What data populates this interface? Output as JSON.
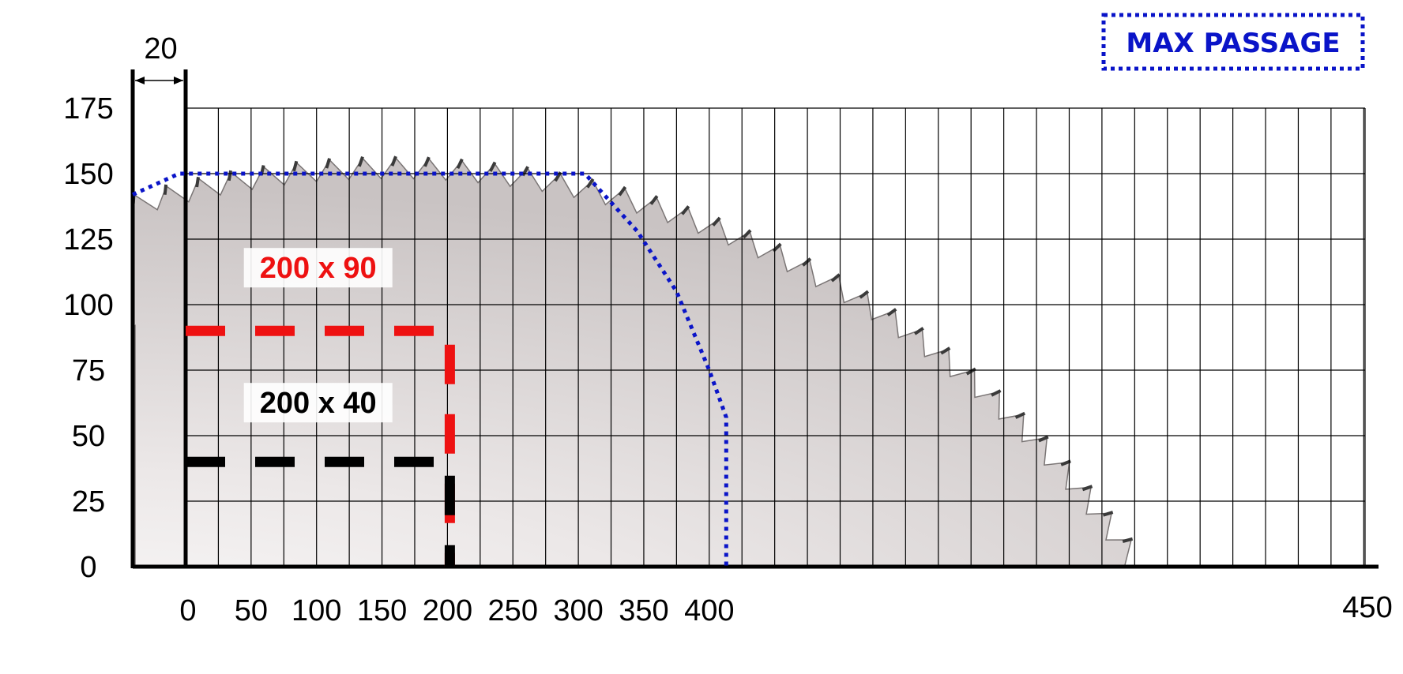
{
  "chart_data": {
    "type": "diagram",
    "description_units": "mm",
    "x_ticks": [
      0,
      50,
      100,
      150,
      200,
      250,
      300,
      350,
      400,
      450
    ],
    "y_ticks": [
      0,
      25,
      50,
      75,
      100,
      125,
      150,
      175
    ],
    "offset_dimension": {
      "label": "20",
      "value": 20
    },
    "legend": {
      "label": "MAX PASSAGE",
      "color": "#0a14c8",
      "style": "dotted"
    },
    "max_passage_outline": {
      "points": [
        [
          -20,
          142
        ],
        [
          -5,
          150
        ],
        [
          305,
          150
        ],
        [
          345,
          128
        ],
        [
          375,
          105
        ],
        [
          400,
          75
        ],
        [
          413,
          57
        ],
        [
          413,
          0
        ]
      ]
    },
    "cuts": [
      {
        "label": "200 x 90",
        "width": 200,
        "height": 90,
        "color": "#ee1111"
      },
      {
        "label": "200 x 40",
        "width": 200,
        "height": 40,
        "color": "#000000"
      }
    ],
    "blade": {
      "name": "circular-saw-blade",
      "tooth_count": 60,
      "fill": "#d7d2d2"
    },
    "grid": true
  }
}
